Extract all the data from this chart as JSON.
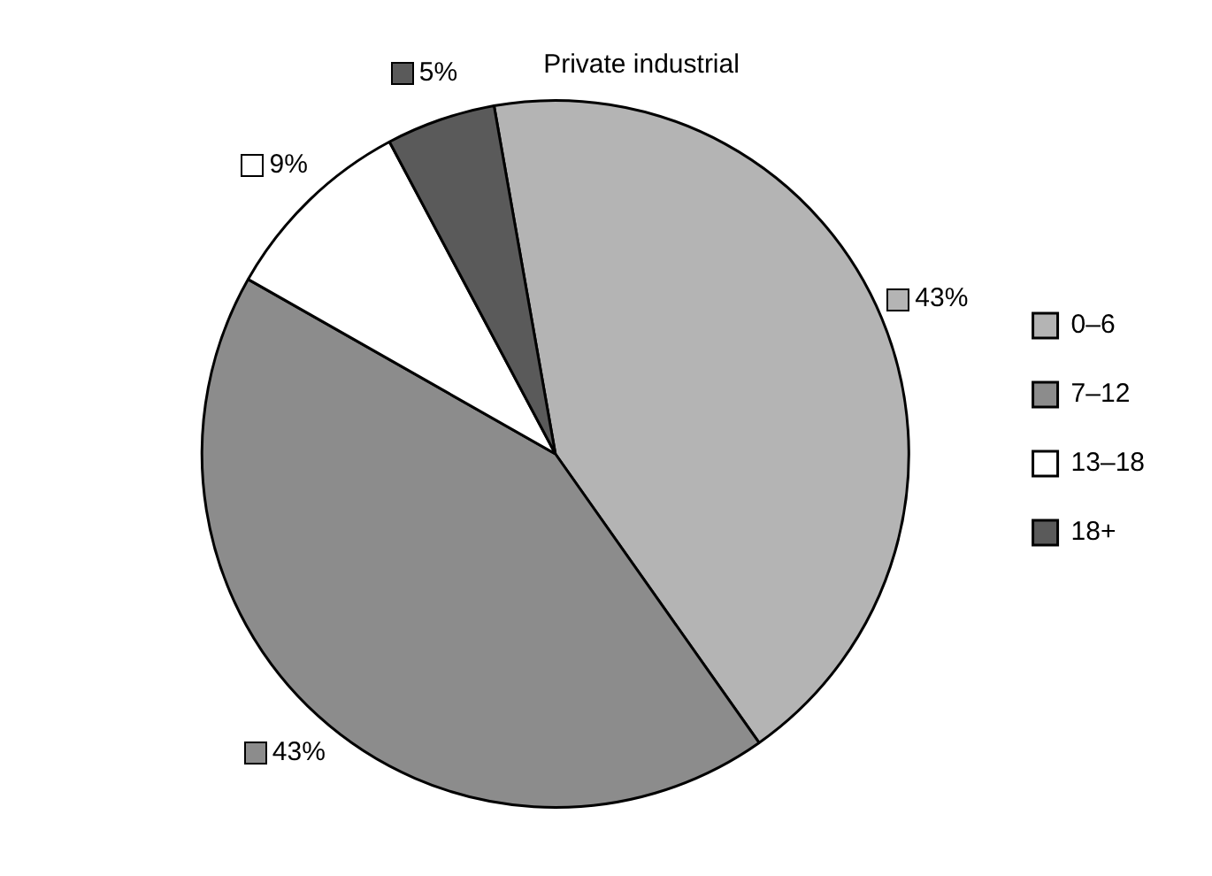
{
  "chart_data": {
    "type": "pie",
    "title": "Private industrial",
    "categories": [
      "0–6",
      "7–12",
      "13–18",
      "18+"
    ],
    "values": [
      43,
      43,
      9,
      5
    ],
    "value_labels": [
      "43%",
      "43%",
      "9%",
      "5%"
    ],
    "colors": [
      "#b4b4b4",
      "#8c8c8c",
      "#ffffff",
      "#5a5a5a"
    ],
    "legend": "right"
  }
}
